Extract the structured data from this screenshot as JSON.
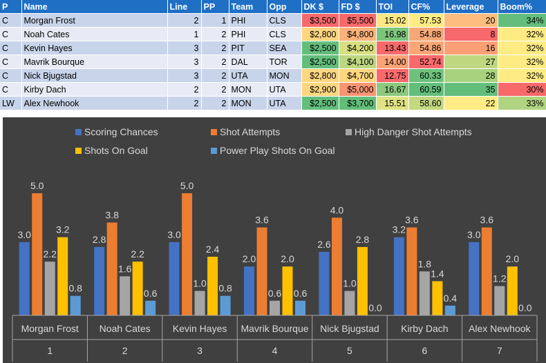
{
  "table": {
    "headers": [
      "P",
      "Name",
      "Line",
      "PP",
      "Team",
      "Opp",
      "DK $",
      "FD $",
      "TOI",
      "CF%",
      "Leverage",
      "Boom%"
    ],
    "rows": [
      {
        "pos": "C",
        "name": "Morgan Frost",
        "line": "2",
        "pp": "1",
        "team": "PHI",
        "opp": "CLS",
        "dk": "$3,500",
        "fd": "$5,500",
        "toi": "15.02",
        "cf": "57.53",
        "leverage": "20",
        "boom": "34%",
        "colors": {
          "dk": "#f8696b",
          "fd": "#f8696b",
          "toi": "#ffe883",
          "cf": "#ffeb84",
          "leverage": "#fdbd7c",
          "boom": "#63be7b"
        }
      },
      {
        "pos": "C",
        "name": "Noah Cates",
        "line": "1",
        "pp": "2",
        "team": "PHI",
        "opp": "CLS",
        "dk": "$2,800",
        "fd": "$4,800",
        "toi": "16.98",
        "cf": "54.88",
        "leverage": "8",
        "boom": "32%",
        "colors": {
          "dk": "#fed680",
          "fd": "#fcb27a",
          "toi": "#7ec57c",
          "cf": "#f8a877",
          "leverage": "#f8696b",
          "boom": "#ffeb84"
        }
      },
      {
        "pos": "C",
        "name": "Kevin Hayes",
        "line": "3",
        "pp": "2",
        "team": "PIT",
        "opp": "SEA",
        "dk": "$2,500",
        "fd": "$4,200",
        "toi": "13.43",
        "cf": "54.86",
        "leverage": "16",
        "boom": "32%",
        "colors": {
          "dk": "#63be7b",
          "fd": "#d8df81",
          "toi": "#f8696b",
          "cf": "#f8a676",
          "leverage": "#fba076",
          "boom": "#ffeb84"
        }
      },
      {
        "pos": "C",
        "name": "Mavrik Bourque",
        "line": "3",
        "pp": "2",
        "team": "DAL",
        "opp": "TOR",
        "dk": "$2,500",
        "fd": "$4,100",
        "toi": "14.00",
        "cf": "52.74",
        "leverage": "27",
        "boom": "32%",
        "colors": {
          "dk": "#63be7b",
          "fd": "#bcd780",
          "toi": "#fba276",
          "cf": "#f8696b",
          "leverage": "#bfd880",
          "boom": "#ffeb84"
        }
      },
      {
        "pos": "C",
        "name": "Nick Bjugstad",
        "line": "3",
        "pp": "2",
        "team": "UTA",
        "opp": "MON",
        "dk": "$2,800",
        "fd": "$4,700",
        "toi": "12.75",
        "cf": "60.33",
        "leverage": "28",
        "boom": "32%",
        "colors": {
          "dk": "#fed680",
          "fd": "#fed680",
          "toi": "#f8696b",
          "cf": "#6ec17c",
          "leverage": "#a9d27f",
          "boom": "#ffeb84"
        }
      },
      {
        "pos": "C",
        "name": "Kirby Dach",
        "line": "2",
        "pp": "2",
        "team": "MON",
        "opp": "UTA",
        "dk": "$2,900",
        "fd": "$5,000",
        "toi": "16.67",
        "cf": "60.59",
        "leverage": "35",
        "boom": "30%",
        "colors": {
          "dk": "#fed680",
          "fd": "#fa9473",
          "toi": "#8cc97e",
          "cf": "#63be7b",
          "leverage": "#63be7b",
          "boom": "#f8696b"
        }
      },
      {
        "pos": "LW",
        "name": "Alex Newhook",
        "line": "2",
        "pp": "2",
        "team": "MON",
        "opp": "UTA",
        "dk": "$2,500",
        "fd": "$3,700",
        "toi": "15.51",
        "cf": "58.60",
        "leverage": "22",
        "boom": "33%",
        "colors": {
          "dk": "#63be7b",
          "fd": "#63be7b",
          "toi": "#e0e383",
          "cf": "#c2d980",
          "leverage": "#ffeb84",
          "boom": "#b1d480"
        }
      }
    ]
  },
  "chart_data": {
    "type": "bar",
    "title": "",
    "categories": [
      {
        "name": "Morgan Frost",
        "index": "1"
      },
      {
        "name": "Noah Cates",
        "index": "2"
      },
      {
        "name": "Kevin Hayes",
        "index": "3"
      },
      {
        "name": "Mavrik Bourque",
        "index": "4"
      },
      {
        "name": "Nick Bjugstad",
        "index": "5"
      },
      {
        "name": "Kirby Dach",
        "index": "6"
      },
      {
        "name": "Alex Newhook",
        "index": "7"
      }
    ],
    "series": [
      {
        "name": "Scoring Chances",
        "color": "#4472c4",
        "values": [
          3.0,
          2.8,
          3.0,
          2.0,
          2.6,
          3.2,
          3.0
        ]
      },
      {
        "name": "Shot Attempts",
        "color": "#ed7d31",
        "values": [
          5.0,
          3.8,
          5.0,
          3.6,
          4.0,
          3.6,
          3.6
        ]
      },
      {
        "name": "High Danger Shot Attempts",
        "color": "#a5a5a5",
        "values": [
          2.2,
          1.6,
          1.0,
          0.6,
          1.0,
          1.8,
          1.2
        ]
      },
      {
        "name": "Shots On Goal",
        "color": "#ffc000",
        "values": [
          3.2,
          2.2,
          2.4,
          2.0,
          2.8,
          1.4,
          2.0
        ]
      },
      {
        "name": "Power Play Shots On Goal",
        "color": "#5b9bd5",
        "values": [
          0.8,
          0.6,
          0.8,
          0.6,
          0.0,
          0.4,
          0.0
        ]
      }
    ],
    "ylim": [
      0,
      5.0
    ],
    "grid": false,
    "legend_position": "top",
    "xlabel": "",
    "ylabel": ""
  }
}
